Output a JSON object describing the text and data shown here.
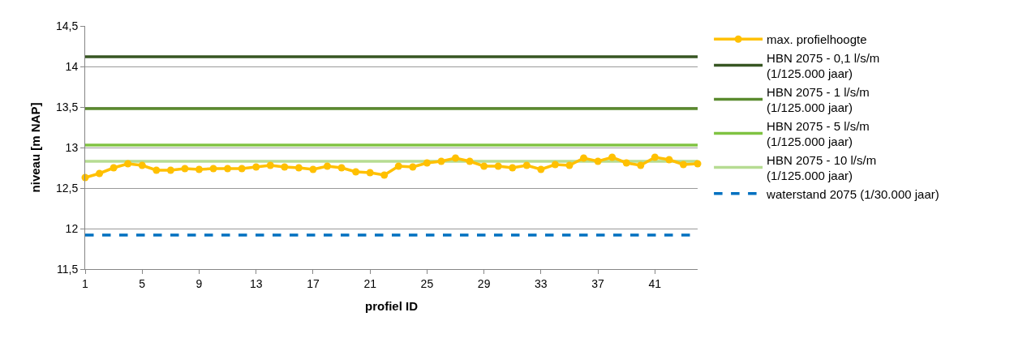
{
  "chart_data": {
    "type": "line",
    "xlabel": "profiel ID",
    "ylabel": "niveau [m NAP]",
    "categories": [
      "1",
      null,
      null,
      null,
      "5",
      null,
      null,
      null,
      "9",
      null,
      null,
      null,
      "13",
      null,
      null,
      null,
      "17",
      null,
      null,
      null,
      "21",
      null,
      null,
      null,
      "25",
      null,
      null,
      null,
      "29",
      null,
      null,
      null,
      "33",
      null,
      null,
      null,
      "37",
      null,
      null,
      null,
      "41",
      null,
      null,
      null
    ],
    "series": [
      {
        "name": "max. profielhoogte",
        "color": "#ffc000",
        "marker": "circle",
        "line_style": "solid",
        "values": [
          12.63,
          12.68,
          12.75,
          12.8,
          12.78,
          12.72,
          12.72,
          12.74,
          12.73,
          12.74,
          12.74,
          12.74,
          12.76,
          12.78,
          12.76,
          12.75,
          12.73,
          12.77,
          12.75,
          12.7,
          12.69,
          12.66,
          12.77,
          12.76,
          12.81,
          12.83,
          12.87,
          12.83,
          12.77,
          12.77,
          12.75,
          12.78,
          12.73,
          12.79,
          12.78,
          12.87,
          12.83,
          12.88,
          12.81,
          12.78,
          12.88,
          12.85,
          12.79,
          12.8
        ]
      },
      {
        "name": "HBN 2075 - 0,1 l/s/m\n(1/125.000 jaar)",
        "color": "#375623",
        "marker": "none",
        "line_style": "solid",
        "values": [
          14.12,
          14.12,
          14.12,
          14.12,
          14.12,
          14.12,
          14.12,
          14.12,
          14.12,
          14.12,
          14.12,
          14.12,
          14.12,
          14.12,
          14.12,
          14.12,
          14.12,
          14.12,
          14.12,
          14.12,
          14.12,
          14.12,
          14.12,
          14.12,
          14.12,
          14.12,
          14.12,
          14.12,
          14.12,
          14.12,
          14.12,
          14.12,
          14.12,
          14.12,
          14.12,
          14.12,
          14.12,
          14.12,
          14.12,
          14.12,
          14.12,
          14.12,
          14.12,
          14.12
        ]
      },
      {
        "name": "HBN 2075 - 1 l/s/m\n(1/125.000 jaar)",
        "color": "#5a8a2e",
        "marker": "none",
        "line_style": "solid",
        "values": [
          13.48,
          13.48,
          13.48,
          13.48,
          13.48,
          13.48,
          13.48,
          13.48,
          13.48,
          13.48,
          13.48,
          13.48,
          13.48,
          13.48,
          13.48,
          13.48,
          13.48,
          13.48,
          13.48,
          13.48,
          13.48,
          13.48,
          13.48,
          13.48,
          13.48,
          13.48,
          13.48,
          13.48,
          13.48,
          13.48,
          13.48,
          13.48,
          13.48,
          13.48,
          13.48,
          13.48,
          13.48,
          13.48,
          13.48,
          13.48,
          13.48,
          13.48,
          13.48,
          13.48
        ]
      },
      {
        "name": "HBN 2075 - 5 l/s/m\n(1/125.000 jaar)",
        "color": "#80c342",
        "marker": "none",
        "line_style": "solid",
        "values": [
          13.03,
          13.03,
          13.03,
          13.03,
          13.03,
          13.03,
          13.03,
          13.03,
          13.03,
          13.03,
          13.03,
          13.03,
          13.03,
          13.03,
          13.03,
          13.03,
          13.03,
          13.03,
          13.03,
          13.03,
          13.03,
          13.03,
          13.03,
          13.03,
          13.03,
          13.03,
          13.03,
          13.03,
          13.03,
          13.03,
          13.03,
          13.03,
          13.03,
          13.03,
          13.03,
          13.03,
          13.03,
          13.03,
          13.03,
          13.03,
          13.03,
          13.03,
          13.03,
          13.03
        ]
      },
      {
        "name": "HBN 2075 - 10 l/s/m\n(1/125.000 jaar)",
        "color": "#b6dc92",
        "marker": "none",
        "line_style": "solid",
        "values": [
          12.83,
          12.83,
          12.83,
          12.83,
          12.83,
          12.83,
          12.83,
          12.83,
          12.83,
          12.83,
          12.83,
          12.83,
          12.83,
          12.83,
          12.83,
          12.83,
          12.83,
          12.83,
          12.83,
          12.83,
          12.83,
          12.83,
          12.83,
          12.83,
          12.83,
          12.83,
          12.83,
          12.83,
          12.83,
          12.83,
          12.83,
          12.83,
          12.83,
          12.83,
          12.83,
          12.83,
          12.83,
          12.83,
          12.83,
          12.83,
          12.83,
          12.83,
          12.83,
          12.83
        ]
      },
      {
        "name": "waterstand 2075 (1/30.000 jaar)",
        "color": "#0070c0",
        "marker": "none",
        "line_style": "dashed",
        "values": [
          11.92,
          11.92,
          11.92,
          11.92,
          11.92,
          11.92,
          11.92,
          11.92,
          11.92,
          11.92,
          11.92,
          11.92,
          11.92,
          11.92,
          11.92,
          11.92,
          11.92,
          11.92,
          11.92,
          11.92,
          11.92,
          11.92,
          11.92,
          11.92,
          11.92,
          11.92,
          11.92,
          11.92,
          11.92,
          11.92,
          11.92,
          11.92,
          11.92,
          11.92,
          11.92,
          11.92,
          11.92,
          11.92,
          11.92,
          11.92,
          11.92,
          11.92,
          11.92,
          11.92
        ]
      }
    ],
    "ylim": [
      11.5,
      14.5
    ],
    "yticks": [
      {
        "value": 11.5,
        "label": "11,5"
      },
      {
        "value": 12,
        "label": "12"
      },
      {
        "value": 12.5,
        "label": "12,5"
      },
      {
        "value": 13,
        "label": "13"
      },
      {
        "value": 13.5,
        "label": "13,5"
      },
      {
        "value": 14,
        "label": "14"
      },
      {
        "value": 14.5,
        "label": "14,5"
      }
    ],
    "grid": "y",
    "legend": "right"
  }
}
